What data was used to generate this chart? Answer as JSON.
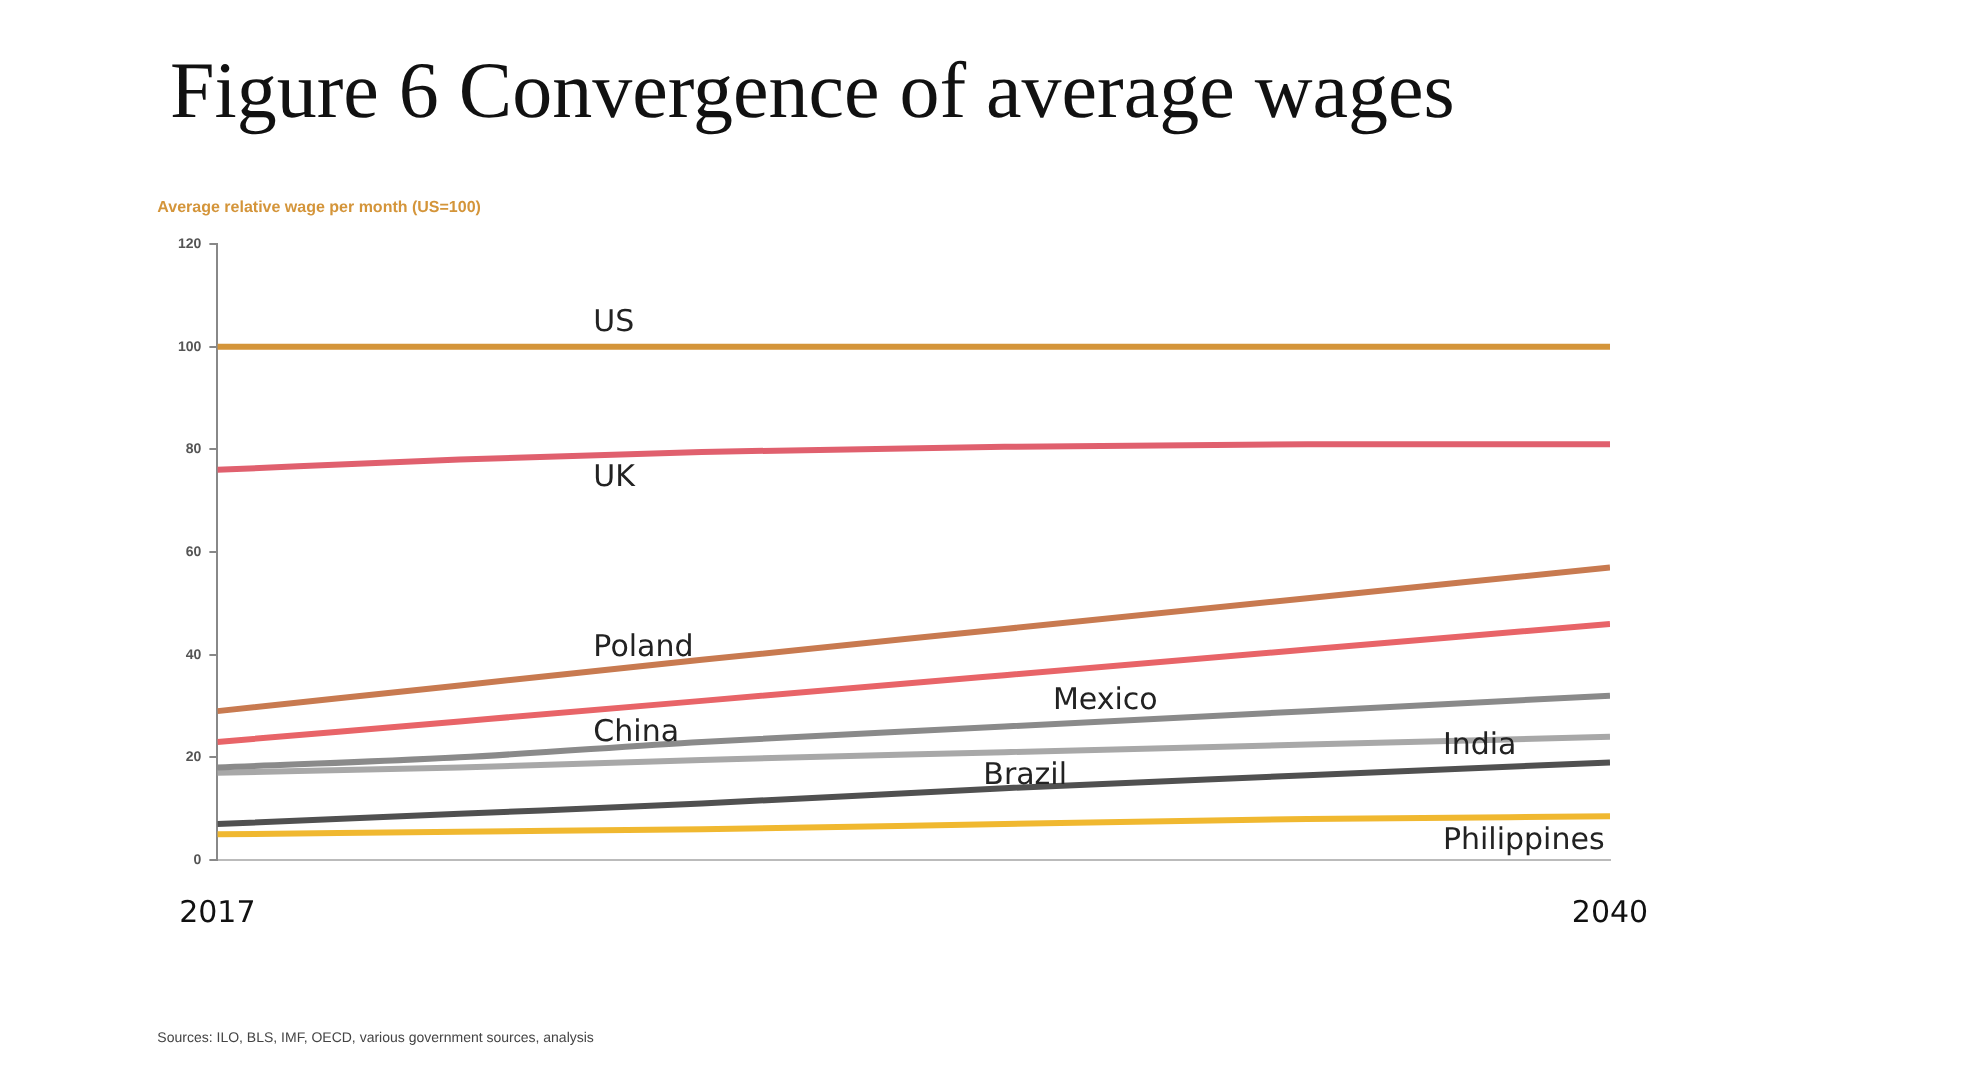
{
  "chart_data": {
    "type": "line",
    "title": "Figure 6 Convergence of average wages",
    "ylabel": "Average relative wage per month (US=100)",
    "x": [
      2017,
      2021,
      2025,
      2030,
      2035,
      2040
    ],
    "series": [
      {
        "name": "US",
        "color": "#d4953a",
        "values": [
          100,
          100,
          100,
          100,
          100,
          100
        ]
      },
      {
        "name": "UK",
        "color": "#e0606e",
        "values": [
          76,
          78,
          79.5,
          80.5,
          81,
          81
        ]
      },
      {
        "name": "Poland",
        "color": "#c87a50",
        "values": [
          29,
          34,
          39,
          45,
          51,
          57
        ]
      },
      {
        "name": "China",
        "color": "#e86468",
        "values": [
          23,
          27,
          31,
          36,
          41,
          46
        ]
      },
      {
        "name": "Mexico",
        "color": "#8a8a8a",
        "values": [
          18,
          20,
          23,
          26,
          29,
          32
        ]
      },
      {
        "name": "Brazil",
        "color": "#a8a8a8",
        "values": [
          17,
          18,
          19.5,
          21,
          22.5,
          24
        ]
      },
      {
        "name": "India",
        "color": "#505050",
        "values": [
          7,
          9,
          11,
          14,
          16.5,
          19
        ]
      },
      {
        "name": "Philippines",
        "color": "#f0b830",
        "values": [
          5,
          5.5,
          6,
          7,
          8,
          8.5
        ]
      }
    ],
    "xlim": [
      2017,
      2040
    ],
    "xticks": [
      2017,
      2040
    ],
    "ylim": [
      0,
      120
    ],
    "yticks": [
      0,
      20,
      40,
      60,
      80,
      100,
      120
    ],
    "grid": false,
    "legend": false,
    "marker": "none",
    "line_style": "solid",
    "annotations": [
      "Sources: ILO, BLS, IMF, OECD, various government sources, analysis"
    ]
  }
}
